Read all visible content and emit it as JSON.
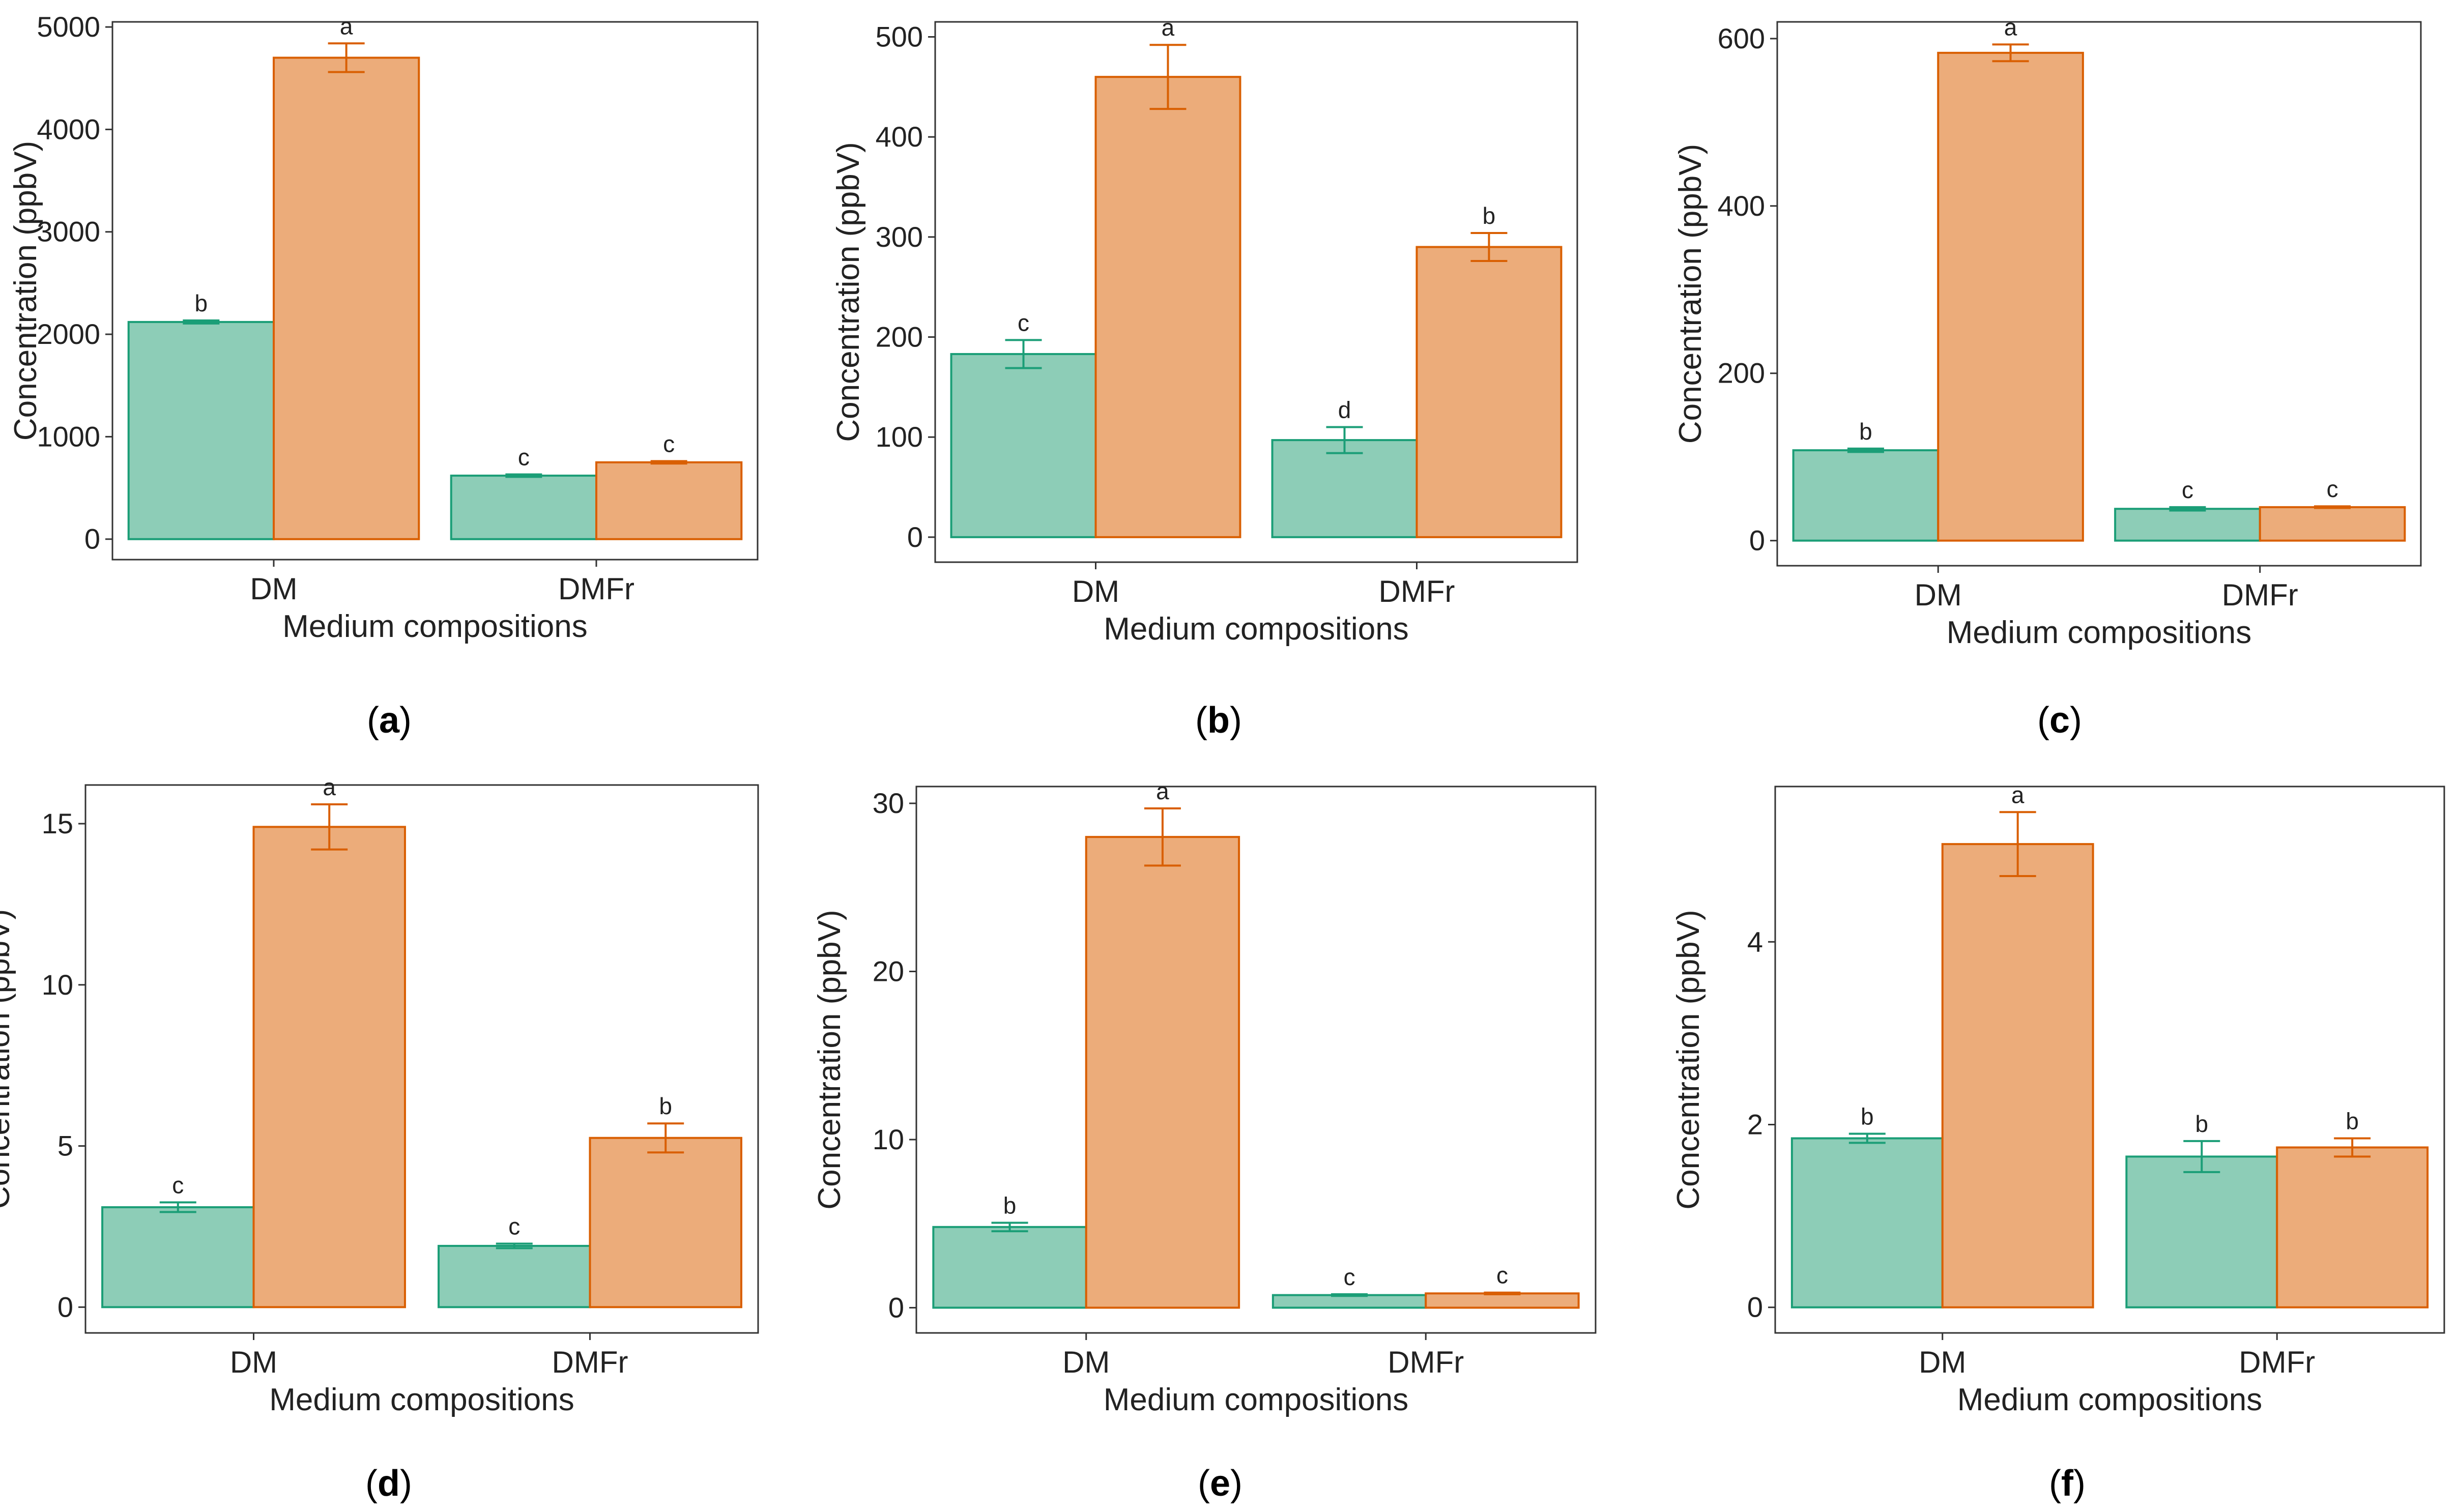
{
  "figure": {
    "colors": {
      "series_a_fill": "#8DCDB7",
      "series_a_stroke": "#1B9E77",
      "series_b_fill": "#ECAC7A",
      "series_b_stroke": "#D95F02",
      "frame": "#333333",
      "text": "#222222"
    }
  },
  "chart_data": [
    {
      "type": "bar",
      "panel_label": "(a)",
      "title": "",
      "xlabel": "Medium compositions",
      "ylabel": "Concentration (ppbV)",
      "categories": [
        "DM",
        "DMFr"
      ],
      "ylim": [
        -200,
        5050
      ],
      "yticks": [
        0,
        1000,
        2000,
        3000,
        4000,
        5000
      ],
      "yticklabels": [
        "0",
        "1000",
        "2000",
        "3000",
        "4000",
        "5000"
      ],
      "series": [
        {
          "name": "series_1",
          "values": [
            2120,
            620
          ],
          "errors": [
            15,
            12
          ],
          "letters": [
            "b",
            "c"
          ]
        },
        {
          "name": "series_2",
          "values": [
            4700,
            750
          ],
          "errors": [
            140,
            12
          ],
          "letters": [
            "a",
            "c"
          ]
        }
      ]
    },
    {
      "type": "bar",
      "panel_label": "(b)",
      "title": "",
      "xlabel": "Medium compositions",
      "ylabel": "Concentration (ppbV)",
      "categories": [
        "DM",
        "DMFr"
      ],
      "ylim": [
        -25,
        515
      ],
      "yticks": [
        0,
        100,
        200,
        300,
        400,
        500
      ],
      "yticklabels": [
        "0",
        "100",
        "200",
        "300",
        "400",
        "500"
      ],
      "series": [
        {
          "name": "series_1",
          "values": [
            183,
            97
          ],
          "errors": [
            14,
            13
          ],
          "letters": [
            "c",
            "d"
          ]
        },
        {
          "name": "series_2",
          "values": [
            460,
            290
          ],
          "errors": [
            32,
            14
          ],
          "letters": [
            "a",
            "b"
          ]
        }
      ]
    },
    {
      "type": "bar",
      "panel_label": "(c)",
      "title": "",
      "xlabel": "Medium compositions",
      "ylabel": "Concentration (ppbV)",
      "categories": [
        "DM",
        "DMFr"
      ],
      "ylim": [
        -30,
        620
      ],
      "yticks": [
        0,
        200,
        400,
        600
      ],
      "yticklabels": [
        "0",
        "200",
        "400",
        "600"
      ],
      "series": [
        {
          "name": "series_1",
          "values": [
            108,
            38
          ],
          "errors": [
            2,
            2
          ],
          "letters": [
            "b",
            "c"
          ]
        },
        {
          "name": "series_2",
          "values": [
            583,
            40
          ],
          "errors": [
            10,
            1
          ],
          "letters": [
            "a",
            "c"
          ]
        }
      ]
    },
    {
      "type": "bar",
      "panel_label": "(d)",
      "title": "",
      "xlabel": "Medium compositions",
      "ylabel": "Concentration (ppbV)",
      "categories": [
        "DM",
        "DMFr"
      ],
      "ylim": [
        -0.8,
        16.2
      ],
      "yticks": [
        0,
        5,
        10,
        15
      ],
      "yticklabels": [
        "0",
        "5",
        "10",
        "15"
      ],
      "series": [
        {
          "name": "series_1",
          "values": [
            3.1,
            1.9
          ],
          "errors": [
            0.15,
            0.07
          ],
          "letters": [
            "c",
            "c"
          ]
        },
        {
          "name": "series_2",
          "values": [
            14.9,
            5.25
          ],
          "errors": [
            0.7,
            0.45
          ],
          "letters": [
            "a",
            "b"
          ]
        }
      ]
    },
    {
      "type": "bar",
      "panel_label": "(e)",
      "title": "",
      "xlabel": "Medium compositions",
      "ylabel": "Concentration (ppbV)",
      "categories": [
        "DM",
        "DMFr"
      ],
      "ylim": [
        -1.5,
        31
      ],
      "yticks": [
        0,
        10,
        20,
        30
      ],
      "yticklabels": [
        "0",
        "10",
        "20",
        "30"
      ],
      "series": [
        {
          "name": "series_1",
          "values": [
            4.8,
            0.75
          ],
          "errors": [
            0.25,
            0.05
          ],
          "letters": [
            "b",
            "c"
          ]
        },
        {
          "name": "series_2",
          "values": [
            28,
            0.85
          ],
          "errors": [
            1.7,
            0.05
          ],
          "letters": [
            "a",
            "c"
          ]
        }
      ]
    },
    {
      "type": "bar",
      "panel_label": "(f)",
      "title": "",
      "xlabel": "Medium compositions",
      "ylabel": "Concentration (ppbV)",
      "categories": [
        "DM",
        "DMFr"
      ],
      "ylim": [
        -0.28,
        5.7
      ],
      "yticks": [
        0,
        2,
        4
      ],
      "yticklabels": [
        "0",
        "2",
        "4"
      ],
      "series": [
        {
          "name": "series_1",
          "values": [
            1.85,
            1.65
          ],
          "errors": [
            0.05,
            0.17
          ],
          "letters": [
            "b",
            "b"
          ]
        },
        {
          "name": "series_2",
          "values": [
            5.07,
            1.75
          ],
          "errors": [
            0.35,
            0.1
          ],
          "letters": [
            "a",
            "b"
          ]
        }
      ]
    }
  ]
}
